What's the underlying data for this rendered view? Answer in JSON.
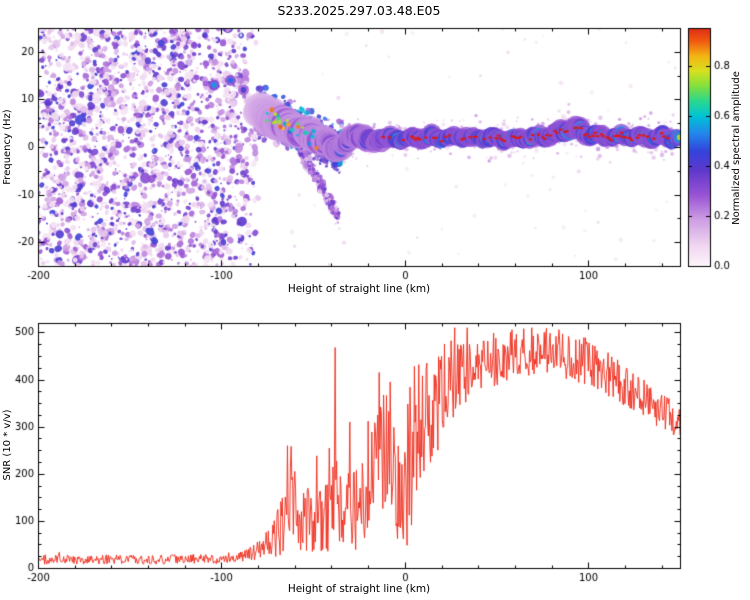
{
  "title": "S233.2025.297.03.48.E05",
  "colors": {
    "snr_line": "#ee2a1a",
    "frame": "#000000",
    "background": "#ffffff"
  },
  "colormap_stops": [
    [
      0.0,
      "#fdf4fb"
    ],
    [
      0.08,
      "#f0d7f0"
    ],
    [
      0.18,
      "#cfa0e4"
    ],
    [
      0.28,
      "#9a55d4"
    ],
    [
      0.38,
      "#6038cc"
    ],
    [
      0.46,
      "#3344dc"
    ],
    [
      0.53,
      "#2288ec"
    ],
    [
      0.6,
      "#00c4d4"
    ],
    [
      0.66,
      "#2cd88c"
    ],
    [
      0.72,
      "#84e03c"
    ],
    [
      0.78,
      "#d8e020"
    ],
    [
      0.84,
      "#f4b414"
    ],
    [
      0.9,
      "#f05a10"
    ],
    [
      1.0,
      "#cc0020"
    ]
  ],
  "chart_data": [
    {
      "type": "heatmap",
      "panel": "spectrogram",
      "title": "S233.2025.297.03.48.E05",
      "xlabel": "Height of straight line (km)",
      "ylabel": "Frequency (Hz)",
      "xlim": [
        -200,
        150
      ],
      "ylim": [
        -25,
        25
      ],
      "xticks": [
        -200,
        -100,
        0,
        100
      ],
      "yticks": [
        -20,
        -10,
        0,
        10,
        20
      ],
      "grid": false,
      "colorbar": {
        "label": "Normalized spectral amplitude",
        "ticks": [
          0.0,
          0.2,
          0.4,
          0.6,
          0.8
        ],
        "vmax_display": 0.95
      },
      "noise_region": {
        "x_range": [
          -200,
          -78
        ],
        "freq_range": [
          -25,
          25
        ],
        "amp_range": [
          0.04,
          0.44
        ],
        "blob_count": 2400
      },
      "hotspots": [
        {
          "x": -104,
          "f": 13,
          "a": 0.55
        },
        {
          "x": -95,
          "f": 14,
          "a": 0.5
        },
        {
          "x": -88,
          "f": 12,
          "a": 0.42
        }
      ],
      "trace": [
        [
          -80,
          7.5,
          4.5,
          0.4
        ],
        [
          -74,
          6.5,
          4.8,
          0.52
        ],
        [
          -68,
          5.0,
          5.0,
          0.6
        ],
        [
          -62,
          4.2,
          4.8,
          0.62
        ],
        [
          -56,
          3.2,
          4.4,
          0.62
        ],
        [
          -50,
          2.2,
          4.0,
          0.64
        ],
        [
          -45,
          1.2,
          3.8,
          0.62
        ],
        [
          -41,
          0.6,
          3.5,
          0.66
        ],
        [
          -37,
          -0.4,
          3.4,
          0.7
        ],
        [
          -33,
          0.2,
          3.2,
          0.7
        ],
        [
          -29,
          2.0,
          3.0,
          0.74
        ],
        [
          -26,
          3.0,
          3.0,
          0.72
        ],
        [
          -22,
          1.6,
          3.0,
          0.76
        ],
        [
          -18,
          1.0,
          2.8,
          0.8
        ],
        [
          -14,
          2.0,
          2.8,
          0.84
        ],
        [
          -10,
          1.6,
          2.7,
          0.88
        ],
        [
          -5,
          1.9,
          2.6,
          0.9
        ],
        [
          0,
          1.6,
          2.5,
          0.92
        ],
        [
          10,
          2.0,
          2.5,
          0.92
        ],
        [
          20,
          1.9,
          2.4,
          0.93
        ],
        [
          30,
          2.2,
          2.4,
          0.92
        ],
        [
          40,
          1.9,
          2.4,
          0.93
        ],
        [
          50,
          2.0,
          2.4,
          0.93
        ],
        [
          60,
          1.7,
          2.4,
          0.92
        ],
        [
          70,
          2.0,
          2.4,
          0.93
        ],
        [
          80,
          2.6,
          2.6,
          0.93
        ],
        [
          88,
          3.6,
          2.8,
          0.92
        ],
        [
          94,
          3.8,
          2.8,
          0.9
        ],
        [
          100,
          2.6,
          2.6,
          0.92
        ],
        [
          110,
          2.1,
          2.4,
          0.93
        ],
        [
          120,
          2.2,
          2.4,
          0.93
        ],
        [
          130,
          2.0,
          2.4,
          0.92
        ],
        [
          140,
          2.1,
          2.4,
          0.93
        ],
        [
          150,
          1.9,
          2.4,
          0.92
        ]
      ],
      "tail": [
        [
          -57,
          -1
        ],
        [
          -52,
          -4
        ],
        [
          -47,
          -7
        ],
        [
          -43,
          -10
        ],
        [
          -39,
          -13
        ],
        [
          -36,
          -15
        ]
      ]
    },
    {
      "type": "line",
      "panel": "snr",
      "xlabel": "Height of straight line (km)",
      "ylabel": "SNR (10 * v/v)",
      "xlim": [
        -200,
        150
      ],
      "ylim": [
        0,
        520
      ],
      "xticks": [
        -200,
        -100,
        0,
        100
      ],
      "yticks": [
        0,
        100,
        200,
        300,
        400,
        500
      ],
      "grid": false,
      "envelope": [
        [
          -200,
          18,
          10
        ],
        [
          -130,
          18,
          10
        ],
        [
          -100,
          20,
          11
        ],
        [
          -88,
          26,
          14
        ],
        [
          -80,
          36,
          20
        ],
        [
          -73,
          55,
          35
        ],
        [
          -66,
          95,
          70
        ],
        [
          -62,
          130,
          95
        ],
        [
          -58,
          95,
          65
        ],
        [
          -52,
          105,
          70
        ],
        [
          -48,
          110,
          75
        ],
        [
          -44,
          95,
          65
        ],
        [
          -40,
          170,
          140
        ],
        [
          -37,
          130,
          100
        ],
        [
          -33,
          95,
          65
        ],
        [
          -29,
          150,
          115
        ],
        [
          -25,
          120,
          85
        ],
        [
          -21,
          150,
          95
        ],
        [
          -17,
          200,
          130
        ],
        [
          -13,
          240,
          150
        ],
        [
          -9,
          220,
          145
        ],
        [
          -5,
          170,
          115
        ],
        [
          -1,
          140,
          95
        ],
        [
          3,
          170,
          125
        ],
        [
          7,
          250,
          150
        ],
        [
          11,
          300,
          140
        ],
        [
          15,
          330,
          125
        ],
        [
          19,
          360,
          105
        ],
        [
          24,
          395,
          90
        ],
        [
          30,
          415,
          75
        ],
        [
          38,
          430,
          62
        ],
        [
          46,
          440,
          58
        ],
        [
          55,
          450,
          56
        ],
        [
          65,
          458,
          52
        ],
        [
          75,
          462,
          52
        ],
        [
          85,
          458,
          54
        ],
        [
          95,
          445,
          52
        ],
        [
          105,
          425,
          48
        ],
        [
          115,
          400,
          46
        ],
        [
          125,
          372,
          44
        ],
        [
          135,
          345,
          42
        ],
        [
          145,
          320,
          38
        ],
        [
          150,
          308,
          36
        ]
      ],
      "spikes": [
        [
          -62,
          258
        ],
        [
          -60,
          205
        ],
        [
          -48,
          238
        ],
        [
          -38,
          468
        ],
        [
          -30,
          310
        ],
        [
          -14,
          415
        ],
        [
          -8,
          395
        ],
        [
          5,
          428
        ],
        [
          12,
          435
        ],
        [
          76,
          500
        ]
      ]
    }
  ]
}
